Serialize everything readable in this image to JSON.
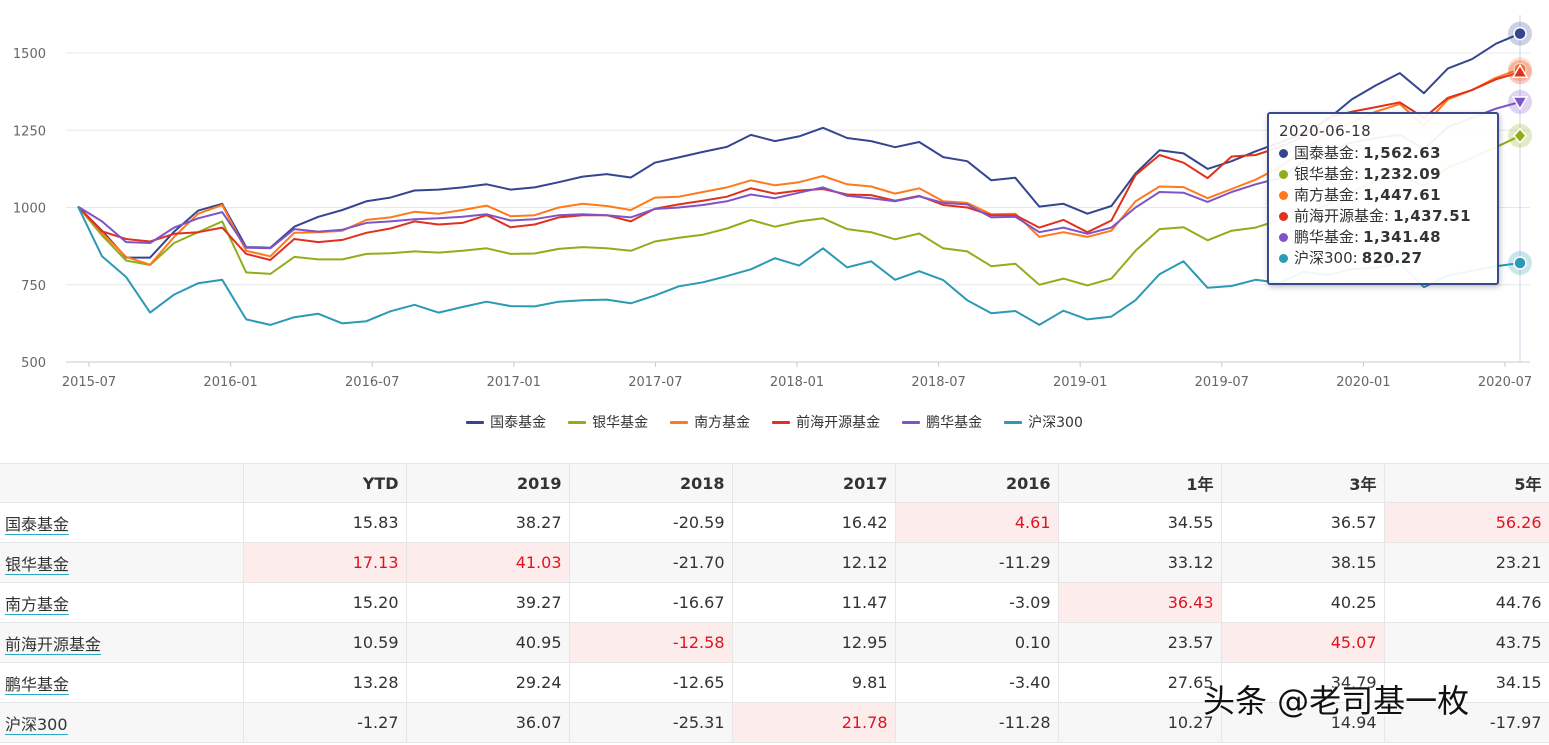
{
  "chart_data": {
    "type": "line",
    "ylim": [
      500,
      1550
    ],
    "yticks": [
      500,
      750,
      1000,
      1250,
      1500
    ],
    "xtick_labels": [
      "2015-07",
      "2016-01",
      "2016-07",
      "2017-01",
      "2017-07",
      "2018-01",
      "2018-07",
      "2019-01",
      "2019-07",
      "2020-01",
      "2020-07"
    ],
    "x_count": 61,
    "series": [
      {
        "name": "国泰基金",
        "color": "#34468f",
        "marker": "circle",
        "values": [
          1003,
          925,
          838,
          838,
          922,
          990,
          1012,
          872,
          870,
          938,
          970,
          992,
          1020,
          1032,
          1055,
          1058,
          1065,
          1075,
          1058,
          1065,
          1082,
          1100,
          1108,
          1097,
          1145,
          1162,
          1180,
          1196,
          1235,
          1215,
          1230,
          1258,
          1225,
          1215,
          1195,
          1212,
          1163,
          1150,
          1088,
          1096,
          1003,
          1012,
          980,
          1005,
          1110,
          1185,
          1175,
          1125,
          1150,
          1182,
          1210,
          1240,
          1285,
          1350,
          1395,
          1435,
          1370,
          1450,
          1480,
          1530,
          1562.63
        ]
      },
      {
        "name": "银华基金",
        "color": "#8fae1a",
        "marker": "diamond",
        "values": [
          1003,
          910,
          828,
          814,
          885,
          920,
          955,
          790,
          785,
          840,
          832,
          832,
          850,
          852,
          858,
          854,
          860,
          868,
          850,
          851,
          866,
          872,
          868,
          860,
          890,
          902,
          912,
          932,
          960,
          938,
          955,
          965,
          930,
          920,
          897,
          916,
          868,
          858,
          810,
          818,
          750,
          770,
          748,
          770,
          860,
          930,
          936,
          894,
          925,
          935,
          960,
          975,
          1010,
          1050,
          1085,
          1105,
          1070,
          1130,
          1160,
          1195,
          1232.09
        ]
      },
      {
        "name": "南方基金",
        "color": "#ff7a1a",
        "marker": "circle",
        "values": [
          1003,
          918,
          840,
          815,
          905,
          980,
          1008,
          860,
          842,
          918,
          920,
          925,
          960,
          968,
          986,
          980,
          992,
          1006,
          972,
          975,
          1000,
          1012,
          1005,
          992,
          1032,
          1035,
          1050,
          1065,
          1088,
          1072,
          1082,
          1102,
          1075,
          1068,
          1045,
          1062,
          1020,
          1015,
          978,
          980,
          905,
          920,
          905,
          925,
          1020,
          1068,
          1066,
          1030,
          1060,
          1090,
          1130,
          1185,
          1240,
          1275,
          1310,
          1335,
          1265,
          1350,
          1380,
          1420,
          1447.61
        ]
      },
      {
        "name": "前海开源基金",
        "color": "#e0301e",
        "marker": "triangle-up",
        "values": [
          1003,
          923,
          898,
          890,
          915,
          920,
          935,
          850,
          830,
          898,
          888,
          895,
          918,
          932,
          955,
          945,
          950,
          975,
          936,
          945,
          968,
          975,
          975,
          955,
          996,
          1010,
          1022,
          1035,
          1062,
          1045,
          1055,
          1060,
          1042,
          1040,
          1022,
          1038,
          1008,
          1000,
          975,
          975,
          935,
          960,
          920,
          958,
          1105,
          1170,
          1145,
          1095,
          1165,
          1170,
          1195,
          1230,
          1290,
          1310,
          1325,
          1340,
          1290,
          1355,
          1380,
          1415,
          1437.51
        ]
      },
      {
        "name": "鹏华基金",
        "color": "#8054c8",
        "marker": "triangle-down",
        "values": [
          1003,
          955,
          888,
          885,
          935,
          965,
          985,
          870,
          868,
          930,
          922,
          928,
          950,
          955,
          962,
          965,
          970,
          978,
          958,
          962,
          975,
          978,
          975,
          968,
          995,
          1000,
          1008,
          1020,
          1042,
          1030,
          1048,
          1065,
          1038,
          1030,
          1020,
          1036,
          1015,
          1010,
          968,
          970,
          920,
          935,
          915,
          935,
          1000,
          1050,
          1048,
          1018,
          1050,
          1075,
          1095,
          1150,
          1185,
          1210,
          1225,
          1235,
          1190,
          1260,
          1290,
          1320,
          1341.48
        ]
      },
      {
        "name": "沪深300",
        "color": "#2a9ab6",
        "marker": "circle",
        "values": [
          1003,
          842,
          775,
          660,
          718,
          755,
          766,
          638,
          620,
          645,
          656,
          625,
          632,
          664,
          685,
          660,
          678,
          695,
          681,
          680,
          695,
          700,
          702,
          690,
          715,
          745,
          758,
          778,
          800,
          836,
          812,
          868,
          806,
          826,
          766,
          794,
          765,
          700,
          658,
          665,
          620,
          666,
          638,
          647,
          700,
          784,
          826,
          740,
          746,
          766,
          756,
          792,
          782,
          800,
          805,
          820,
          742,
          780,
          795,
          810,
          820.27
        ]
      }
    ]
  },
  "legend": {
    "s0": "国泰基金",
    "s1": "银华基金",
    "s2": "南方基金",
    "s3": "前海开源基金",
    "s4": "鹏华基金",
    "s5": "沪深300"
  },
  "tooltip": {
    "date": "2020-06-18",
    "rows": [
      {
        "label": "国泰基金:",
        "value": "1,562.63",
        "color": "#34468f"
      },
      {
        "label": "银华基金:",
        "value": "1,232.09",
        "color": "#8fae1a"
      },
      {
        "label": "南方基金:",
        "value": "1,447.61",
        "color": "#ff7a1a"
      },
      {
        "label": "前海开源基金:",
        "value": "1,437.51",
        "color": "#e0301e"
      },
      {
        "label": "鹏华基金:",
        "value": "1,341.48",
        "color": "#8054c8"
      },
      {
        "label": "沪深300:",
        "value": "820.27",
        "color": "#2a9ab6"
      }
    ]
  },
  "table": {
    "headers": [
      "",
      "YTD",
      "2019",
      "2018",
      "2017",
      "2016",
      "1年",
      "3年",
      "5年"
    ],
    "rows": [
      {
        "name": "国泰基金",
        "cells": [
          "15.83",
          "38.27",
          "-20.59",
          "16.42",
          "4.61",
          "34.55",
          "36.57",
          "56.26"
        ],
        "hl": [
          4,
          7
        ]
      },
      {
        "name": "银华基金",
        "cells": [
          "17.13",
          "41.03",
          "-21.70",
          "12.12",
          "-11.29",
          "33.12",
          "38.15",
          "23.21"
        ],
        "hl": [
          0,
          1
        ]
      },
      {
        "name": "南方基金",
        "cells": [
          "15.20",
          "39.27",
          "-16.67",
          "11.47",
          "-3.09",
          "36.43",
          "40.25",
          "44.76"
        ],
        "hl": [
          5
        ]
      },
      {
        "name": "前海开源基金",
        "cells": [
          "10.59",
          "40.95",
          "-12.58",
          "12.95",
          "0.10",
          "23.57",
          "45.07",
          "43.75"
        ],
        "hl": [
          2,
          6
        ]
      },
      {
        "name": "鹏华基金",
        "cells": [
          "13.28",
          "29.24",
          "-12.65",
          "9.81",
          "-3.40",
          "27.65",
          "34.79",
          "34.15"
        ],
        "hl": []
      },
      {
        "name": "沪深300",
        "cells": [
          "-1.27",
          "36.07",
          "-25.31",
          "21.78",
          "-11.28",
          "10.27",
          "14.94",
          "-17.97"
        ],
        "hl": [
          3
        ]
      }
    ]
  },
  "watermark": "头条 @老司基一枚"
}
